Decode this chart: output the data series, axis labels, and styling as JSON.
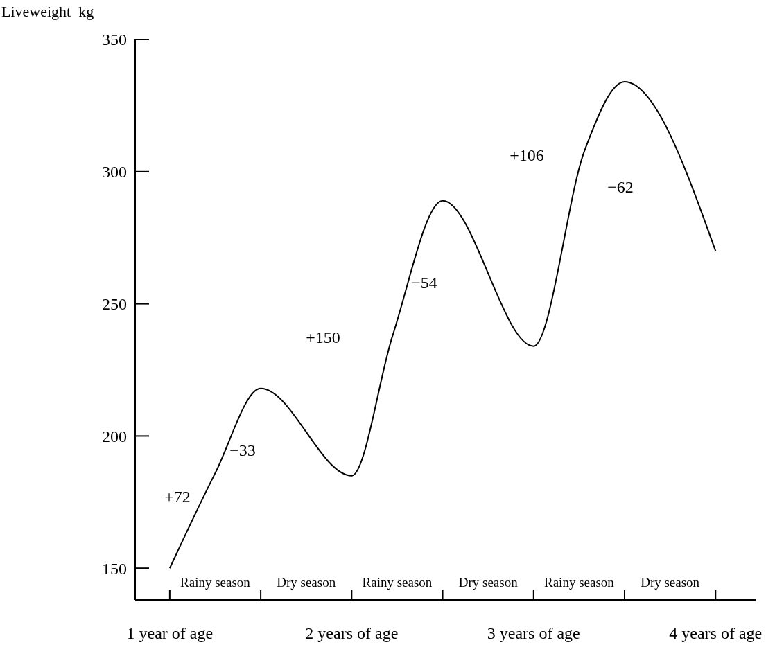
{
  "chart_data": {
    "type": "line",
    "ylabel": "Liveweight  kg",
    "x": [
      1,
      1.25,
      1.5,
      2,
      2.225,
      2.5,
      3,
      3.28,
      3.5,
      4
    ],
    "series": [
      {
        "color": "#000000",
        "values": [
          150,
          186,
          218,
          185,
          238,
          289,
          234,
          308,
          334,
          270
        ]
      }
    ],
    "xlim": [
      0.81,
      4.22
    ],
    "ylim": [
      138,
      350
    ],
    "xticks": [
      {
        "value": 1,
        "label": "1 year of age"
      },
      {
        "value": 1.5,
        "label": null
      },
      {
        "value": 2,
        "label": "2 years of age"
      },
      {
        "value": 2.5,
        "label": null
      },
      {
        "value": 3,
        "label": "3 years of age"
      },
      {
        "value": 3.5,
        "label": null
      },
      {
        "value": 4,
        "label": "4 years of age"
      }
    ],
    "yticks": [
      150,
      200,
      250,
      300,
      350
    ],
    "grid": false,
    "marker": "none",
    "line_style": "solid",
    "annotations": [
      "+72",
      "−33",
      "+150",
      "−54",
      "+106",
      "−62",
      "Rainy season",
      "Dry season",
      "Rainy season",
      "Dry season",
      "Rainy season",
      "Dry season"
    ]
  }
}
